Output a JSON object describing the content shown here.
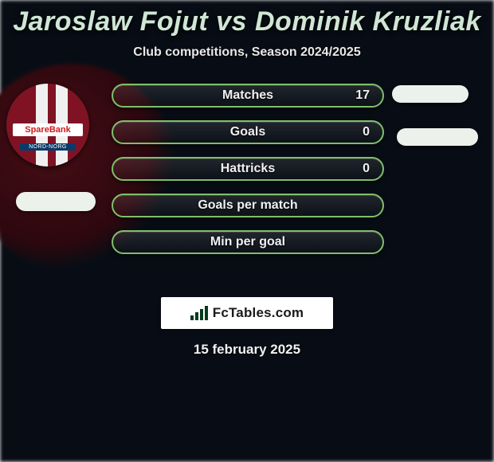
{
  "title": "Jaroslaw Fojut vs Dominik Kruzliak",
  "subtitle": "Club competitions, Season 2024/2025",
  "date": "15 february 2025",
  "branding": "FcTables.com",
  "jersey": {
    "sponsor": "SpareBank",
    "subsponsor": "NORD-NORG"
  },
  "bar_border_color": "#7fbf6a",
  "stats": [
    {
      "label": "Matches",
      "value": "17"
    },
    {
      "label": "Goals",
      "value": "0"
    },
    {
      "label": "Hattricks",
      "value": "0"
    },
    {
      "label": "Goals per match",
      "value": ""
    },
    {
      "label": "Min per goal",
      "value": ""
    }
  ]
}
